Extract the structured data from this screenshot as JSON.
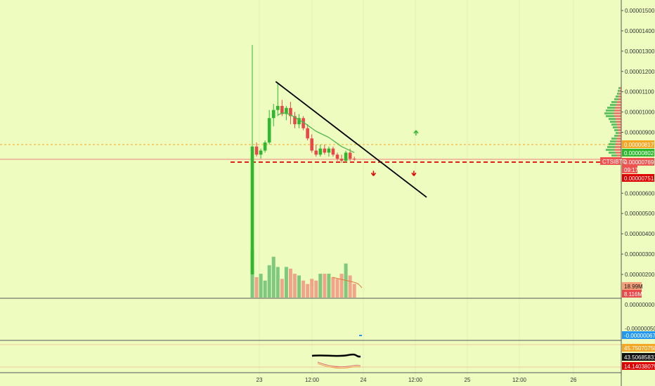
{
  "chart_data": {
    "type": "candlestick",
    "symbol": "CTSIBTC",
    "price_axis": {
      "ticks": [
        "0.00001500",
        "0.00001400",
        "0.00001300",
        "0.00001200",
        "0.00001100",
        "0.00001000",
        "0.00000900",
        "0.00000600",
        "0.00000500",
        "0.00000400",
        "0.00000300",
        "0.00000200"
      ],
      "range": [
        1.7e-06,
        1.53e-05
      ]
    },
    "time_axis": {
      "ticks": [
        "23",
        "12:00",
        "24",
        "12:00",
        "25",
        "12:00",
        "26"
      ]
    },
    "price_labels": {
      "orange": "0.00000817",
      "green": "0.00000802",
      "last": "0.00000769",
      "countdown": "09:17",
      "red_line": "0.00000751",
      "symbol_tag": "CTSIBTC"
    },
    "volume_labels": {
      "upper": "18.99M",
      "lower": "8.116M"
    },
    "volume_pane_ticks": [
      "0.00000000",
      "-0.00000050"
    ],
    "macd_labels": {
      "value": "-0.00000067"
    },
    "rsi_labels": {
      "orange": "45.75070750",
      "black": "43.50685831",
      "red": "14.14038079"
    },
    "candles": [
      {
        "o": 2.0,
        "h": 13.3,
        "l": 2.0,
        "c": 8.3
      },
      {
        "o": 8.3,
        "h": 8.5,
        "l": 7.8,
        "c": 7.9
      },
      {
        "o": 7.9,
        "h": 8.2,
        "l": 7.7,
        "c": 8.1
      },
      {
        "o": 8.1,
        "h": 8.6,
        "l": 8.0,
        "c": 8.5
      },
      {
        "o": 8.5,
        "h": 10.1,
        "l": 8.4,
        "c": 9.7
      },
      {
        "o": 9.7,
        "h": 10.4,
        "l": 9.3,
        "c": 10.1
      },
      {
        "o": 10.1,
        "h": 11.4,
        "l": 9.8,
        "c": 10.3
      },
      {
        "o": 10.3,
        "h": 10.6,
        "l": 9.8,
        "c": 9.9
      },
      {
        "o": 9.9,
        "h": 10.3,
        "l": 9.6,
        "c": 10.2
      },
      {
        "o": 10.2,
        "h": 10.5,
        "l": 9.4,
        "c": 9.8
      },
      {
        "o": 9.8,
        "h": 10.0,
        "l": 9.2,
        "c": 9.4
      },
      {
        "o": 9.4,
        "h": 9.9,
        "l": 9.2,
        "c": 9.7
      },
      {
        "o": 9.7,
        "h": 9.8,
        "l": 9.1,
        "c": 9.2
      },
      {
        "o": 9.2,
        "h": 9.4,
        "l": 8.6,
        "c": 8.7
      },
      {
        "o": 8.7,
        "h": 8.9,
        "l": 8.0,
        "c": 8.1
      },
      {
        "o": 8.1,
        "h": 8.4,
        "l": 7.8,
        "c": 7.9
      },
      {
        "o": 7.9,
        "h": 8.4,
        "l": 7.8,
        "c": 8.2
      },
      {
        "o": 8.2,
        "h": 8.4,
        "l": 7.9,
        "c": 8.0
      },
      {
        "o": 8.0,
        "h": 8.3,
        "l": 7.8,
        "c": 8.2
      },
      {
        "o": 8.2,
        "h": 8.3,
        "l": 7.8,
        "c": 7.9
      },
      {
        "o": 7.9,
        "h": 8.0,
        "l": 7.6,
        "c": 7.7
      },
      {
        "o": 7.7,
        "h": 7.9,
        "l": 7.5,
        "c": 7.6
      },
      {
        "o": 7.6,
        "h": 8.1,
        "l": 7.5,
        "c": 8.0
      },
      {
        "o": 8.0,
        "h": 8.2,
        "l": 7.6,
        "c": 7.7
      },
      {
        "o": 7.7,
        "h": 7.8,
        "l": 7.6,
        "c": 7.69
      }
    ],
    "volumes": [
      28,
      12,
      14,
      10,
      19,
      24,
      18,
      11,
      18,
      17,
      14,
      13,
      10,
      8,
      11,
      10,
      14,
      14,
      14,
      12,
      11,
      14,
      20,
      13,
      8.1
    ],
    "volume_max": 33,
    "ma_line": [
      null,
      null,
      null,
      null,
      null,
      null,
      9.85,
      9.95,
      9.95,
      9.85,
      9.75,
      9.6,
      9.5,
      9.35,
      9.2,
      9.05,
      8.95,
      8.85,
      8.75,
      8.6,
      8.45,
      8.3,
      8.2,
      8.1,
      8.0
    ],
    "trendline": {
      "from_index": 6,
      "from_price": 11.5,
      "to_index": 41,
      "to_price": 5.8
    },
    "arrows": [
      {
        "index": 38.5,
        "price": 8.95,
        "dir": "up"
      },
      {
        "index": 28.5,
        "price": 7.0,
        "dir": "down"
      },
      {
        "index": 38.0,
        "price": 7.0,
        "dir": "down"
      }
    ],
    "unit_multiplier": "1e-6"
  }
}
